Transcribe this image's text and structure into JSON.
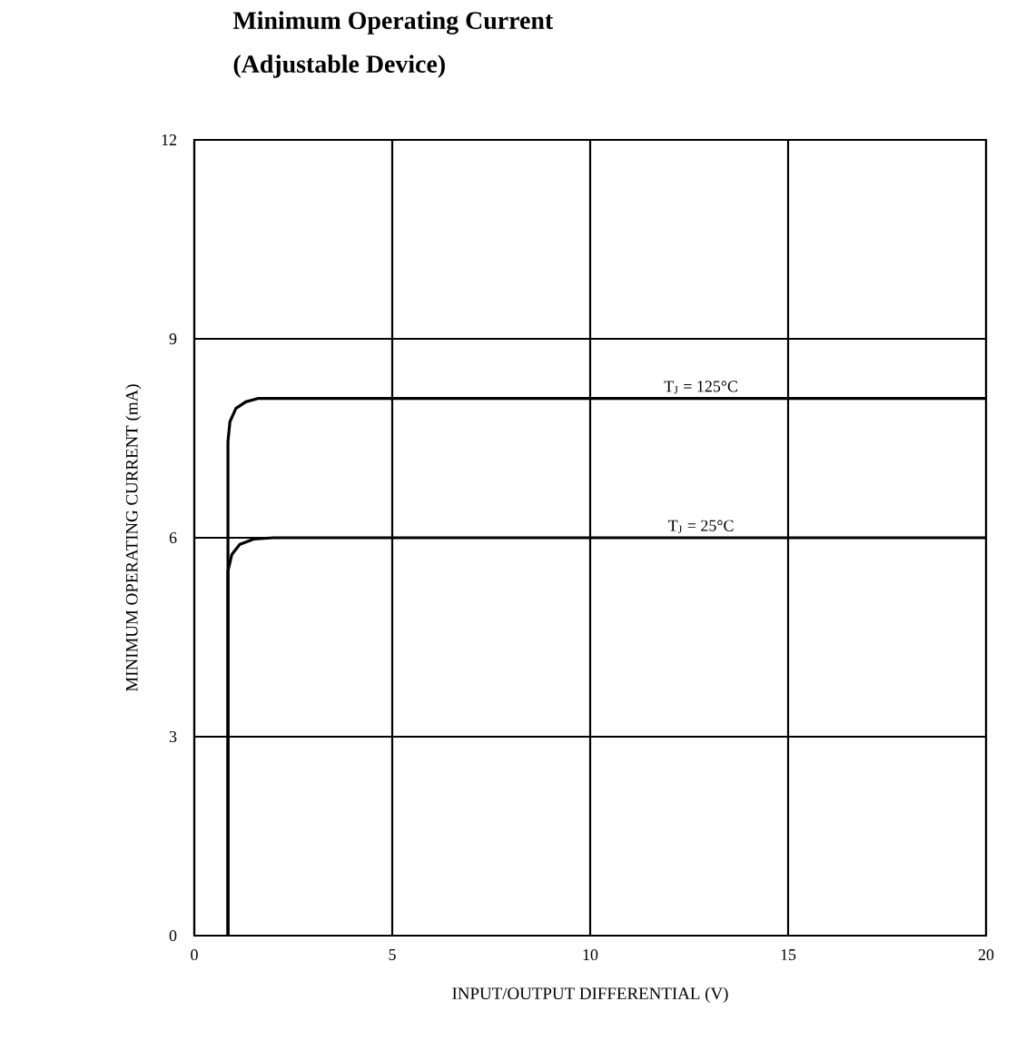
{
  "chart_data": {
    "type": "line",
    "title": "Minimum Operating Current",
    "subtitle": "(Adjustable Device)",
    "xlabel": "INPUT/OUTPUT DIFFERENTIAL (V)",
    "ylabel": "MINIMUM OPERATING CURRENT (mA)",
    "xlim": [
      0,
      20
    ],
    "ylim": [
      0,
      12
    ],
    "xticks": [
      0,
      5,
      10,
      15,
      20
    ],
    "yticks": [
      0,
      3,
      6,
      9,
      12
    ],
    "grid": true,
    "series": [
      {
        "name": "T$_{J}$ = 125°C",
        "color": "#000000",
        "x": [
          0.85,
          0.85,
          0.9,
          1.05,
          1.3,
          1.6,
          2.0,
          20
        ],
        "values": [
          0,
          7.45,
          7.75,
          7.95,
          8.05,
          8.1,
          8.1,
          8.1
        ]
      },
      {
        "name": "T$_{J}$ = 25°C",
        "color": "#000000",
        "x": [
          0.85,
          0.85,
          0.95,
          1.15,
          1.5,
          2.0,
          20
        ],
        "values": [
          0,
          5.5,
          5.75,
          5.9,
          5.98,
          6.0,
          6.0
        ]
      }
    ]
  }
}
